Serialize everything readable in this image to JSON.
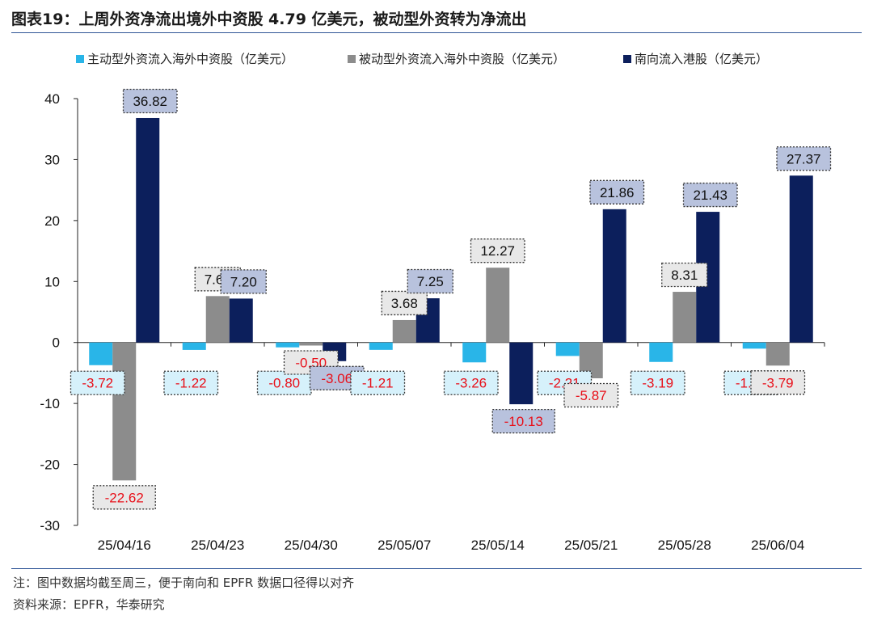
{
  "title": "图表19：上周外资净流出境外中资股 4.79 亿美元，被动型外资转为净流出",
  "chart_data": {
    "type": "bar",
    "categories": [
      "25/04/16",
      "25/04/23",
      "25/04/30",
      "25/05/07",
      "25/05/14",
      "25/05/21",
      "25/05/28",
      "25/06/04"
    ],
    "series": [
      {
        "name": "主动型外资流入海外中资股（亿美元）",
        "color": "#29b5e8",
        "label_bg": "#d6f1fb",
        "values": [
          -3.72,
          -1.22,
          -0.8,
          -1.21,
          -3.26,
          -2.21,
          -3.19,
          -1.01
        ]
      },
      {
        "name": "被动型外资流入海外中资股（亿美元）",
        "color": "#8c8c8c",
        "label_bg": "#e8e8e8",
        "values": [
          -22.62,
          7.61,
          -0.5,
          3.68,
          12.27,
          -5.87,
          8.31,
          -3.79
        ]
      },
      {
        "name": "南向流入港股（亿美元）",
        "color": "#0c1f5c",
        "label_bg": "#b8c2dd",
        "values": [
          36.82,
          7.2,
          -3.06,
          7.25,
          -10.13,
          21.86,
          21.43,
          27.37
        ]
      }
    ],
    "ylim": [
      -30,
      40
    ],
    "yticks": [
      -30,
      -20,
      -10,
      0,
      10,
      20,
      30,
      40
    ],
    "legend_position": "top",
    "negative_label_color": "#e8101a",
    "xlabel": "",
    "ylabel": ""
  },
  "notes": {
    "note": "注：图中数据均截至周三，便于南向和 EPFR 数据口径得以对齐",
    "source": "资料来源：EPFR，华泰研究"
  }
}
